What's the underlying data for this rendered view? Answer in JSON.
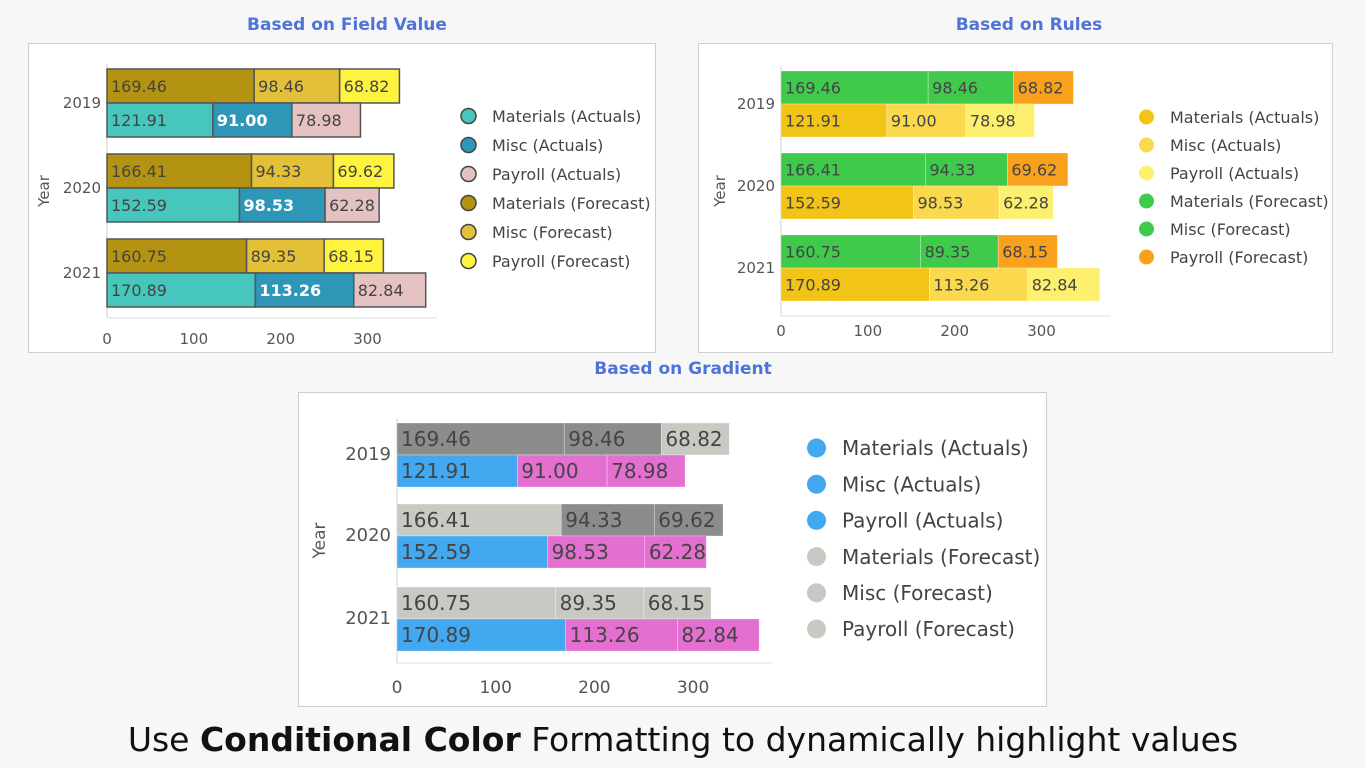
{
  "caption": {
    "prefix": "Use ",
    "bold": "Conditional Color",
    "suffix": " Formatting to dynamically highlight values"
  },
  "chart_data": [
    {
      "type": "bar",
      "orientation": "horizontal",
      "stacked": true,
      "title": "Based on Field Value",
      "ylabel": "Year",
      "categories": [
        "2019",
        "2020",
        "2021"
      ],
      "xlim": [
        0,
        380
      ],
      "xticks": [
        "0",
        "100",
        "200",
        "300"
      ],
      "legend_position": "right",
      "series": [
        {
          "name": "Materials (Forecast)",
          "group": "Forecast",
          "values": [
            169.46,
            166.41,
            160.75
          ],
          "colors": [
            "#b39311",
            "#b39311",
            "#b39311"
          ]
        },
        {
          "name": "Misc (Forecast)",
          "group": "Forecast",
          "values": [
            98.46,
            94.33,
            89.35
          ],
          "colors": [
            "#e3c038",
            "#e3c038",
            "#e3c038"
          ]
        },
        {
          "name": "Payroll (Forecast)",
          "group": "Forecast",
          "values": [
            68.82,
            69.62,
            68.15
          ],
          "colors": [
            "#fef33f",
            "#fef33f",
            "#fef33f"
          ]
        },
        {
          "name": "Materials (Actuals)",
          "group": "Actuals",
          "values": [
            121.91,
            152.59,
            170.89
          ],
          "colors": [
            "#47c6bd",
            "#47c6bd",
            "#47c6bd"
          ]
        },
        {
          "name": "Misc (Actuals)",
          "group": "Actuals",
          "values": [
            91.0,
            98.53,
            113.26
          ],
          "colors": [
            "#2e97b7",
            "#2e97b7",
            "#2e97b7"
          ]
        },
        {
          "name": "Payroll (Actuals)",
          "group": "Actuals",
          "values": [
            78.98,
            62.28,
            82.84
          ],
          "colors": [
            "#e4c2c2",
            "#e4c2c2",
            "#e4c2c2"
          ]
        }
      ],
      "labels": [
        [
          "169.46",
          "166.41",
          "160.75"
        ],
        [
          "98.46",
          "94.33",
          "89.35"
        ],
        [
          "68.82",
          "69.62",
          "68.15"
        ],
        [
          "121.91",
          "152.59",
          "170.89"
        ],
        [
          "91.00",
          "98.53",
          "113.26"
        ],
        [
          "78.98",
          "62.28",
          "82.84"
        ]
      ],
      "legend": [
        {
          "name": "Materials (Actuals)",
          "color": "#47c6bd"
        },
        {
          "name": "Misc (Actuals)",
          "color": "#2e97b7"
        },
        {
          "name": "Payroll (Actuals)",
          "color": "#e4c2c2"
        },
        {
          "name": "Materials (Forecast)",
          "color": "#b39311"
        },
        {
          "name": "Misc (Forecast)",
          "color": "#e3c038"
        },
        {
          "name": "Payroll (Forecast)",
          "color": "#fef33f"
        }
      ],
      "bold_labels": [
        "91.00",
        "98.53",
        "113.26"
      ],
      "bar_outline": "#555555"
    },
    {
      "type": "bar",
      "orientation": "horizontal",
      "stacked": true,
      "title": "Based on Rules",
      "ylabel": "Year",
      "categories": [
        "2019",
        "2020",
        "2021"
      ],
      "xlim": [
        0,
        380
      ],
      "xticks": [
        "0",
        "100",
        "200",
        "300"
      ],
      "legend_position": "right",
      "series": [
        {
          "name": "Materials (Forecast)",
          "group": "Forecast",
          "values": [
            169.46,
            166.41,
            160.75
          ],
          "colors": [
            "#3fca4c",
            "#3fca4c",
            "#3fca4c"
          ]
        },
        {
          "name": "Misc (Forecast)",
          "group": "Forecast",
          "values": [
            98.46,
            94.33,
            89.35
          ],
          "colors": [
            "#3fca4c",
            "#3fca4c",
            "#3fca4c"
          ]
        },
        {
          "name": "Payroll (Forecast)",
          "group": "Forecast",
          "values": [
            68.82,
            69.62,
            68.15
          ],
          "colors": [
            "#f9a11d",
            "#f9a11d",
            "#f9a11d"
          ]
        },
        {
          "name": "Materials (Actuals)",
          "group": "Actuals",
          "values": [
            121.91,
            152.59,
            170.89
          ],
          "colors": [
            "#f2c417",
            "#f2c417",
            "#f2c417"
          ]
        },
        {
          "name": "Misc (Actuals)",
          "group": "Actuals",
          "values": [
            91.0,
            98.53,
            113.26
          ],
          "colors": [
            "#fbd94e",
            "#fbd94e",
            "#fbd94e"
          ]
        },
        {
          "name": "Payroll (Actuals)",
          "group": "Actuals",
          "values": [
            78.98,
            62.28,
            82.84
          ],
          "colors": [
            "#fdf06e",
            "#fdf06e",
            "#fdf06e"
          ]
        }
      ],
      "labels": [
        [
          "169.46",
          "166.41",
          "160.75"
        ],
        [
          "98.46",
          "94.33",
          "89.35"
        ],
        [
          "68.82",
          "69.62",
          "68.15"
        ],
        [
          "121.91",
          "152.59",
          "170.89"
        ],
        [
          "91.00",
          "98.53",
          "113.26"
        ],
        [
          "78.98",
          "62.28",
          "82.84"
        ]
      ],
      "legend": [
        {
          "name": "Materials (Actuals)",
          "color": "#f2c417"
        },
        {
          "name": "Misc (Actuals)",
          "color": "#fbd94e"
        },
        {
          "name": "Payroll (Actuals)",
          "color": "#fdf06e"
        },
        {
          "name": "Materials (Forecast)",
          "color": "#3fca4c"
        },
        {
          "name": "Misc (Forecast)",
          "color": "#3fca4c"
        },
        {
          "name": "Payroll (Forecast)",
          "color": "#f9a11d"
        }
      ],
      "bold_labels": [],
      "bar_outline": ""
    },
    {
      "type": "bar",
      "orientation": "horizontal",
      "stacked": true,
      "title": "Based on Gradient",
      "ylabel": "Year",
      "categories": [
        "2019",
        "2020",
        "2021"
      ],
      "xlim": [
        0,
        380
      ],
      "xticks": [
        "0",
        "100",
        "200",
        "300"
      ],
      "legend_position": "right",
      "series": [
        {
          "name": "Materials (Forecast)",
          "group": "Forecast",
          "values": [
            169.46,
            166.41,
            160.75
          ],
          "colors": [
            "#8c8c8c",
            "#c9c9c4",
            "#c9c9c4"
          ]
        },
        {
          "name": "Misc (Forecast)",
          "group": "Forecast",
          "values": [
            98.46,
            94.33,
            89.35
          ],
          "colors": [
            "#8c8c8c",
            "#8c8c8c",
            "#c9c9c4"
          ]
        },
        {
          "name": "Payroll (Forecast)",
          "group": "Forecast",
          "values": [
            68.82,
            69.62,
            68.15
          ],
          "colors": [
            "#c9c9c4",
            "#8c8c8c",
            "#c9c9c4"
          ]
        },
        {
          "name": "Materials (Actuals)",
          "group": "Actuals",
          "values": [
            121.91,
            152.59,
            170.89
          ],
          "colors": [
            "#42a8f0",
            "#42a8f0",
            "#42a8f0"
          ]
        },
        {
          "name": "Misc (Actuals)",
          "group": "Actuals",
          "values": [
            91.0,
            98.53,
            113.26
          ],
          "colors": [
            "#e36fd0",
            "#e36fd0",
            "#e36fd0"
          ]
        },
        {
          "name": "Payroll (Actuals)",
          "group": "Actuals",
          "values": [
            78.98,
            62.28,
            82.84
          ],
          "colors": [
            "#e36fd0",
            "#e36fd0",
            "#e36fd0"
          ]
        }
      ],
      "labels": [
        [
          "169.46",
          "166.41",
          "160.75"
        ],
        [
          "98.46",
          "94.33",
          "89.35"
        ],
        [
          "68.82",
          "69.62",
          "68.15"
        ],
        [
          "121.91",
          "152.59",
          "170.89"
        ],
        [
          "91.00",
          "98.53",
          "113.26"
        ],
        [
          "78.98",
          "62.28",
          "82.84"
        ]
      ],
      "legend": [
        {
          "name": "Materials (Actuals)",
          "color": "#42a8f0"
        },
        {
          "name": "Misc (Actuals)",
          "color": "#42a8f0"
        },
        {
          "name": "Payroll (Actuals)",
          "color": "#42a8f0"
        },
        {
          "name": "Materials (Forecast)",
          "color": "#c9c9c4"
        },
        {
          "name": "Misc (Forecast)",
          "color": "#c9c9c4"
        },
        {
          "name": "Payroll (Forecast)",
          "color": "#c9c9c4"
        }
      ],
      "bold_labels": [],
      "bar_outline": ""
    }
  ]
}
